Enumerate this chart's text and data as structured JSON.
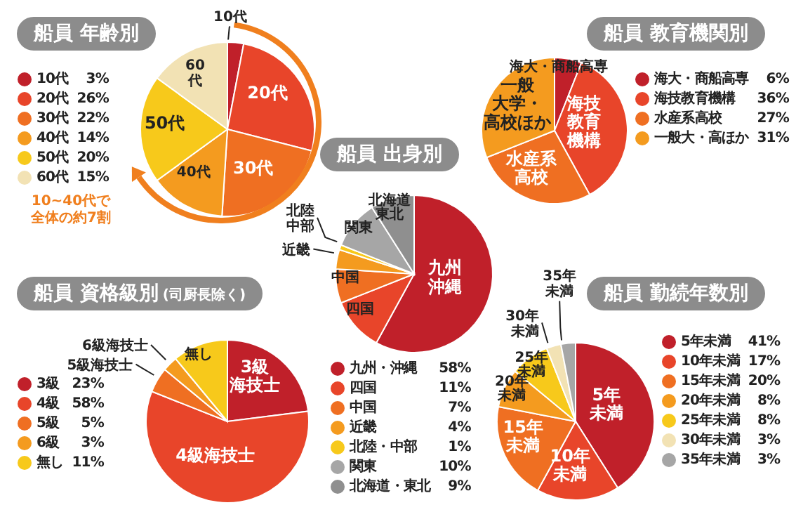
{
  "chart_data": [
    {
      "type": "pie",
      "title": "船員 年齢別",
      "categories": [
        "10代",
        "20代",
        "30代",
        "40代",
        "50代",
        "60代"
      ],
      "values": [
        3,
        26,
        22,
        14,
        20,
        15
      ],
      "colors": [
        "#c0202a",
        "#e8452a",
        "#ef6f22",
        "#f49b1f",
        "#f7c91b",
        "#f2e2b4"
      ],
      "value_labels": [
        "3%",
        "26%",
        "22%",
        "14%",
        "20%",
        "15%"
      ],
      "legend": "left",
      "annotations": [
        {
          "text": "10代",
          "x": "10代"
        },
        {
          "text": "20代",
          "x": "20代"
        },
        {
          "text": "30代",
          "x": "30代"
        },
        {
          "text": "40代",
          "x": "40代"
        },
        {
          "text": "50代",
          "x": "50代"
        },
        {
          "text": "60",
          "x": "60代"
        },
        {
          "text": "代",
          "x": "60代"
        },
        "10~40代で",
        "全体の約7割"
      ]
    },
    {
      "type": "pie",
      "title": "船員 教育機関別",
      "categories": [
        "海大・商船高専",
        "海技教育機構",
        "水産系高校",
        "一般大・高ほか"
      ],
      "values": [
        6,
        36,
        27,
        31
      ],
      "colors": [
        "#c0202a",
        "#e8452a",
        "#ef6f22",
        "#f49b1f"
      ],
      "value_labels": [
        "6%",
        "36%",
        "27%",
        "31%"
      ],
      "legend": "right",
      "annotations": [
        {
          "text": "海大・商船高専",
          "x": "海大・商船高専"
        },
        {
          "text": "海技",
          "x": "海技教育機構"
        },
        {
          "text": "教育",
          "x": "海技教育機構"
        },
        {
          "text": "機構",
          "x": "海技教育機構"
        },
        {
          "text": "水産系",
          "x": "水産系高校"
        },
        {
          "text": "高校",
          "x": "水産系高校"
        },
        {
          "text": "一般",
          "x": "一般大・高ほか"
        },
        {
          "text": "大学・",
          "x": "一般大・高ほか"
        },
        {
          "text": "高校ほか",
          "x": "一般大・高ほか"
        }
      ]
    },
    {
      "type": "pie",
      "title": "船員 出身別",
      "categories": [
        "九州・沖縄",
        "四国",
        "中国",
        "近畿",
        "北陸・中部",
        "関東",
        "北海道・東北"
      ],
      "values": [
        58,
        11,
        7,
        4,
        1,
        10,
        9
      ],
      "colors": [
        "#c0202a",
        "#e8452a",
        "#ef6f22",
        "#f49b1f",
        "#f7c91b",
        "#a6a6a6",
        "#8f8f8f"
      ],
      "value_labels": [
        "58%",
        "11%",
        "7%",
        "4%",
        "1%",
        "10%",
        "9%"
      ],
      "legend": "bottom",
      "annotations": [
        {
          "text": "九州",
          "x": "九州・沖縄"
        },
        {
          "text": "沖縄",
          "x": "九州・沖縄"
        },
        {
          "text": "四国",
          "x": "四国"
        },
        {
          "text": "中国",
          "x": "中国"
        },
        {
          "text": "近畿",
          "x": "近畿"
        },
        {
          "text": "北陸",
          "x": "北陸・中部"
        },
        {
          "text": "中部",
          "x": "北陸・中部"
        },
        {
          "text": "関東",
          "x": "関東"
        },
        {
          "text": "北海道",
          "x": "北海道・東北"
        },
        {
          "text": "東北",
          "x": "北海道・東北"
        }
      ]
    },
    {
      "type": "pie",
      "title": "船員 資格級別",
      "subtitle": "(司厨長除く)",
      "categories": [
        "3級",
        "4級",
        "5級",
        "6級",
        "無し"
      ],
      "values": [
        23,
        58,
        5,
        3,
        11
      ],
      "colors": [
        "#c0202a",
        "#e8452a",
        "#ef6f22",
        "#f49b1f",
        "#f7c91b"
      ],
      "value_labels": [
        "23%",
        "58%",
        "5%",
        "3%",
        "11%"
      ],
      "legend": "left",
      "annotations": [
        {
          "text": "3級",
          "x": "3級"
        },
        {
          "text": "海技士",
          "x": "3級"
        },
        {
          "text": "4級海技士",
          "x": "4級"
        },
        {
          "text": "5級海技士",
          "x": "5級"
        },
        {
          "text": "6級海技士",
          "x": "6級"
        },
        {
          "text": "無し",
          "x": "無し"
        }
      ]
    },
    {
      "type": "pie",
      "title": "船員 勤続年数別",
      "categories": [
        "5年未満",
        "10年未満",
        "15年未満",
        "20年未満",
        "25年未満",
        "30年未満",
        "35年未満"
      ],
      "values": [
        41,
        17,
        20,
        8,
        8,
        3,
        3
      ],
      "colors": [
        "#c0202a",
        "#e8452a",
        "#ef6f22",
        "#f49b1f",
        "#f7c91b",
        "#f2e2b4",
        "#a6a6a6"
      ],
      "value_labels": [
        "41%",
        "17%",
        "20%",
        "8%",
        "8%",
        "3%",
        "3%"
      ],
      "legend": "right",
      "annotations": [
        {
          "text": "5年",
          "x": "5年未満"
        },
        {
          "text": "未満",
          "x": "5年未満"
        },
        {
          "text": "10年",
          "x": "10年未満"
        },
        {
          "text": "未満",
          "x": "10年未満"
        },
        {
          "text": "15年",
          "x": "15年未満"
        },
        {
          "text": "未満",
          "x": "15年未満"
        },
        {
          "text": "20年",
          "x": "20年未満"
        },
        {
          "text": "未満",
          "x": "20年未満"
        },
        {
          "text": "25年",
          "x": "25年未満"
        },
        {
          "text": "未満",
          "x": "25年未満"
        },
        {
          "text": "30年",
          "x": "30年未満"
        },
        {
          "text": "未満",
          "x": "30年未満"
        },
        {
          "text": "35年",
          "x": "35年未満"
        },
        {
          "text": "未満",
          "x": "35年未満"
        }
      ]
    }
  ]
}
